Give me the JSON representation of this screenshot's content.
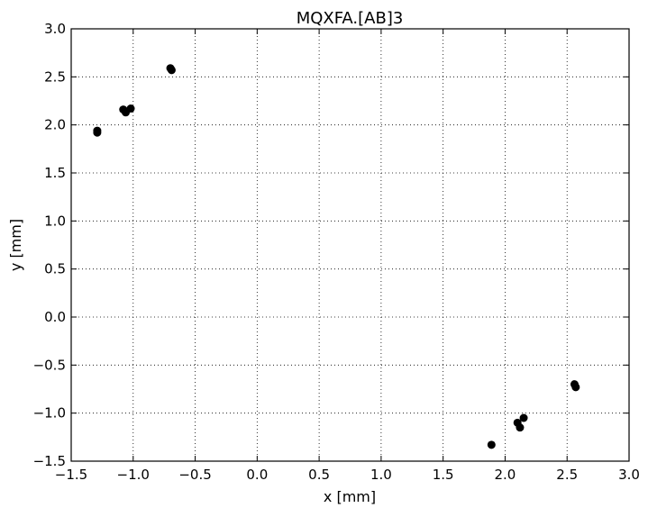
{
  "chart_data": {
    "type": "scatter",
    "title": "MQXFA.[AB]3",
    "xlabel": "x [mm]",
    "ylabel": "y [mm]",
    "xlim": [
      -1.5,
      3.0
    ],
    "ylim": [
      -1.5,
      3.0
    ],
    "xticks": [
      -1.5,
      -1.0,
      -0.5,
      0.0,
      0.5,
      1.0,
      1.5,
      2.0,
      2.5,
      3.0
    ],
    "yticks": [
      -1.5,
      -1.0,
      -0.5,
      0.0,
      0.5,
      1.0,
      1.5,
      2.0,
      2.5,
      3.0
    ],
    "xtick_labels": [
      "−1.5",
      "−1.0",
      "−0.5",
      "0.0",
      "0.5",
      "1.0",
      "1.5",
      "2.0",
      "2.5",
      "3.0"
    ],
    "ytick_labels": [
      "−1.5",
      "−1.0",
      "−0.5",
      "0.0",
      "0.5",
      "1.0",
      "1.5",
      "2.0",
      "2.5",
      "3.0"
    ],
    "grid": true,
    "grid_style": "dotted",
    "marker_color": "#000000",
    "series": [
      {
        "points": [
          {
            "x": -1.29,
            "y": 1.92
          },
          {
            "x": -1.29,
            "y": 1.94
          },
          {
            "x": -1.08,
            "y": 2.16
          },
          {
            "x": -1.06,
            "y": 2.13
          },
          {
            "x": -1.02,
            "y": 2.17
          },
          {
            "x": -0.7,
            "y": 2.59
          },
          {
            "x": -0.69,
            "y": 2.57
          },
          {
            "x": 1.89,
            "y": -1.33
          },
          {
            "x": 2.1,
            "y": -1.1
          },
          {
            "x": 2.12,
            "y": -1.15
          },
          {
            "x": 2.15,
            "y": -1.05
          },
          {
            "x": 2.56,
            "y": -0.7
          },
          {
            "x": 2.57,
            "y": -0.73
          }
        ]
      }
    ]
  }
}
